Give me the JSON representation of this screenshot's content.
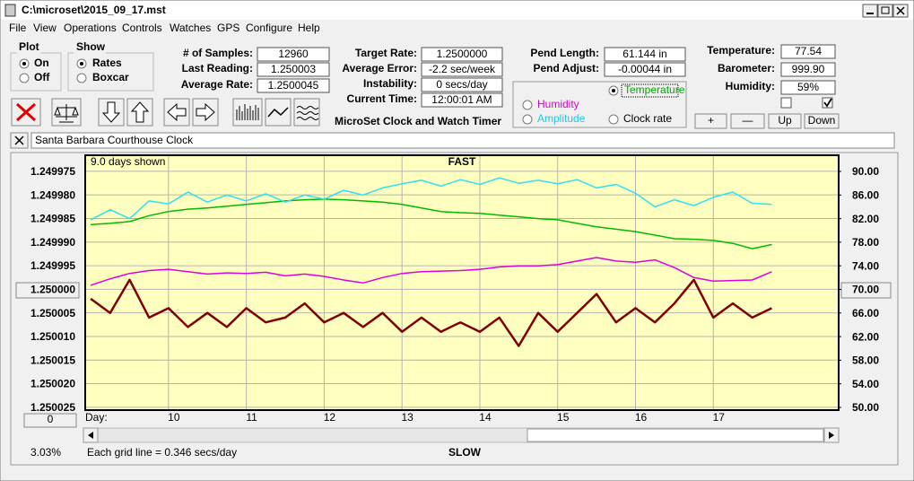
{
  "window": {
    "title": "C:\\microset\\2015_09_17.mst"
  },
  "menu": [
    "File",
    "View",
    "Operations",
    "Controls",
    "Watches",
    "GPS",
    "Configure",
    "Help"
  ],
  "plot_group": {
    "title": "Plot",
    "options": [
      "On",
      "Off"
    ]
  },
  "show_group": {
    "title": "Show",
    "options": [
      "Rates",
      "Boxcar"
    ]
  },
  "fields": [
    {
      "label": "# of Samples:",
      "value": "12960"
    },
    {
      "label": "Last Reading:",
      "value": "1.250003"
    },
    {
      "label": "Average Rate:",
      "value": "1.2500045"
    },
    {
      "label": "Target Rate:",
      "value": "1.2500000"
    },
    {
      "label": "Average Error:",
      "value": "-2.2 sec/week"
    },
    {
      "label": "Instability:",
      "value": "0 secs/day"
    },
    {
      "label": "Current Time:",
      "value": "12:00:01 AM"
    },
    {
      "label": "Pend Length:",
      "value": "61.144 in"
    },
    {
      "label": "Pend Adjust:",
      "value": "-0.00044 in"
    },
    {
      "label": "Temperature:",
      "value": "77.54"
    },
    {
      "label": "Barometer:",
      "value": "999.90"
    },
    {
      "label": "Humidity:",
      "value": "59%"
    }
  ],
  "caption": "MicroSet Clock and Watch Timer",
  "buttons": [
    "+",
    "—",
    "Up",
    "Down"
  ],
  "clock_name": "Santa Barbara Courthouse Clock",
  "chart_data": {
    "type": "line",
    "title": "FAST",
    "bottom_label": "SLOW",
    "days_shown": "9.0 days shown",
    "grid_note": "Each grid line = 0.346 secs/day",
    "percent": "3.03%",
    "offset_button": "0",
    "x_label": "Day:",
    "grid": true,
    "x": [
      9.0,
      9.25,
      9.5,
      9.75,
      10.0,
      10.25,
      10.5,
      10.75,
      11.0,
      11.25,
      11.5,
      11.75,
      12.0,
      12.25,
      12.5,
      12.75,
      13.0,
      13.25,
      13.5,
      13.75,
      14.0,
      14.25,
      14.5,
      14.75,
      15.0,
      15.25,
      15.5,
      15.75,
      16.0,
      16.25,
      16.5,
      16.75,
      17.0,
      17.25,
      17.5,
      17.75
    ],
    "xlim": [
      8.93,
      18.61
    ],
    "xticks": [
      10,
      11,
      12,
      13,
      14,
      15,
      16,
      17
    ],
    "ylim": [
      1.2500256,
      1.2499716
    ],
    "yticks": [
      1.249975,
      {
        "value": 1.24998,
        "label": "1.249980"
      },
      1.249985,
      {
        "value": 1.24999,
        "label": "1.249990"
      },
      1.249995,
      {
        "value": 1.25,
        "label": "1.250000"
      },
      1.250005,
      {
        "value": 1.25001,
        "label": "1.250010"
      },
      1.250015,
      {
        "value": 1.25002,
        "label": "1.250020"
      },
      1.250025
    ],
    "y2lim": [
      49.54,
      92.74
    ],
    "y2ticks": [
      {
        "value": 90,
        "label": "90.00"
      },
      {
        "value": 86,
        "label": "86.00"
      },
      {
        "value": 82,
        "label": "82.00"
      },
      {
        "value": 78,
        "label": "78.00"
      },
      {
        "value": 74,
        "label": "74.00"
      },
      {
        "value": 70,
        "label": "70.00"
      },
      {
        "value": 66,
        "label": "66.00"
      },
      {
        "value": 62,
        "label": "62.00"
      },
      {
        "value": 58,
        "label": "58.00"
      },
      {
        "value": 54,
        "label": "54.00"
      },
      {
        "value": 50,
        "label": "50.00"
      }
    ],
    "series": [
      {
        "name": "Temperature",
        "color": "#00bb00",
        "axis": "y2",
        "values": [
          81.0,
          81.2,
          81.5,
          82.5,
          83.2,
          83.6,
          83.8,
          84.1,
          84.4,
          84.7,
          85.0,
          85.2,
          85.3,
          85.2,
          85.0,
          84.8,
          84.4,
          83.8,
          83.2,
          83.0,
          82.9,
          82.6,
          82.3,
          82.0,
          81.8,
          81.2,
          80.6,
          80.2,
          79.8,
          79.2,
          78.6,
          78.5,
          78.3,
          77.8,
          76.9,
          77.6
        ]
      },
      {
        "name": "Humidity",
        "color": "#e000e0",
        "axis": "y2",
        "values": [
          70.7,
          71.8,
          72.7,
          73.2,
          73.4,
          73.0,
          72.6,
          72.8,
          72.7,
          72.9,
          72.3,
          72.6,
          72.2,
          71.6,
          71.1,
          72.0,
          72.7,
          73.0,
          73.1,
          73.2,
          73.4,
          73.8,
          74.0,
          74.0,
          74.2,
          74.8,
          75.4,
          74.8,
          74.6,
          75.0,
          73.7,
          72.0,
          71.4,
          71.5,
          71.6,
          73.0
        ]
      },
      {
        "name": "Amplitude",
        "color": "#30e0f0",
        "axis": "y2",
        "values": [
          81.8,
          83.5,
          82.0,
          85.0,
          84.5,
          86.5,
          84.8,
          86.0,
          85.0,
          86.2,
          84.8,
          86.0,
          85.3,
          86.8,
          86.0,
          87.2,
          87.9,
          88.5,
          87.5,
          88.6,
          87.8,
          88.9,
          88.0,
          88.5,
          87.9,
          88.6,
          87.2,
          87.8,
          86.3,
          84.0,
          85.2,
          84.2,
          85.6,
          86.5,
          84.6,
          84.4
        ]
      },
      {
        "name": "Clock rate",
        "color": "#800000",
        "axis": "y",
        "values": [
          1.250002,
          1.250005,
          1.249998,
          1.250006,
          1.250004,
          1.250008,
          1.250005,
          1.250008,
          1.250004,
          1.250007,
          1.250006,
          1.250003,
          1.250007,
          1.250005,
          1.250008,
          1.250005,
          1.250009,
          1.250006,
          1.250009,
          1.250007,
          1.250009,
          1.250006,
          1.250012,
          1.250005,
          1.250009,
          1.250005,
          1.250001,
          1.250007,
          1.250004,
          1.250007,
          1.250003,
          1.249998,
          1.250006,
          1.250003,
          1.250006,
          1.250004
        ]
      }
    ]
  }
}
